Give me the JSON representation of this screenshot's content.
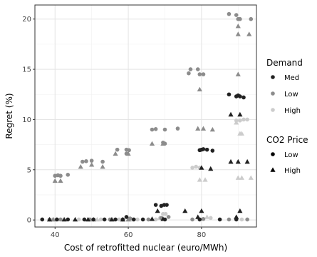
{
  "chart_data": {
    "type": "scatter",
    "xlabel": "Cost of retrofitted nuclear (euro/MWh)",
    "ylabel": "Regret (%)",
    "xlim": [
      34.5,
      95
    ],
    "ylim": [
      -0.7,
      21.4
    ],
    "x_ticks": [
      40,
      60,
      80
    ],
    "x_tick_labels": [
      "40",
      "60",
      "80"
    ],
    "y_ticks": [
      0,
      5,
      10,
      15,
      20
    ],
    "y_tick_labels": [
      "0",
      "5",
      "10",
      "15",
      "20"
    ],
    "grid": true,
    "panel_border": true,
    "legend_position": "right",
    "legends": [
      {
        "title": "Demand",
        "entries": [
          {
            "label": "Med",
            "color": "#222222"
          },
          {
            "label": "Low",
            "color": "#8c8c8c"
          },
          {
            "label": "High",
            "color": "#cccccc"
          }
        ]
      },
      {
        "title": "CO2 Price",
        "entries": [
          {
            "label": "Low",
            "shape": "circle"
          },
          {
            "label": "High",
            "shape": "triangle"
          }
        ]
      }
    ],
    "colors": {
      "Med": "#222222",
      "Low": "#8c8c8c",
      "High": "#cccccc"
    },
    "points": [
      {
        "x": 36.5,
        "y": 0.05,
        "demand": "Med",
        "co2": "Low"
      },
      {
        "x": 38.5,
        "y": 0.05,
        "demand": "Low",
        "co2": "Low"
      },
      {
        "x": 39.5,
        "y": 0.05,
        "demand": "High",
        "co2": "Low"
      },
      {
        "x": 40.5,
        "y": 0.05,
        "demand": "Med",
        "co2": "Low"
      },
      {
        "x": 41.5,
        "y": 0.05,
        "demand": "Low",
        "co2": "Low"
      },
      {
        "x": 43.5,
        "y": 0.05,
        "demand": "Med",
        "co2": "Low"
      },
      {
        "x": 46.5,
        "y": 0.05,
        "demand": "High",
        "co2": "Low"
      },
      {
        "x": 48.0,
        "y": 0.05,
        "demand": "Med",
        "co2": "Low"
      },
      {
        "x": 49.5,
        "y": 0.05,
        "demand": "Low",
        "co2": "Low"
      },
      {
        "x": 50.5,
        "y": 0.05,
        "demand": "Med",
        "co2": "Low"
      },
      {
        "x": 52.5,
        "y": 0.05,
        "demand": "High",
        "co2": "Low"
      },
      {
        "x": 53.5,
        "y": 0.05,
        "demand": "Med",
        "co2": "Low"
      },
      {
        "x": 55.0,
        "y": 0.05,
        "demand": "Low",
        "co2": "Low"
      },
      {
        "x": 56.5,
        "y": 0.05,
        "demand": "Med",
        "co2": "Low"
      },
      {
        "x": 57.5,
        "y": 0.05,
        "demand": "High",
        "co2": "Low"
      },
      {
        "x": 58.5,
        "y": 0.05,
        "demand": "Med",
        "co2": "Low"
      },
      {
        "x": 59.5,
        "y": 0.3,
        "demand": "Med",
        "co2": "Low"
      },
      {
        "x": 60.5,
        "y": 0.15,
        "demand": "Low",
        "co2": "Low"
      },
      {
        "x": 61.5,
        "y": 0.05,
        "demand": "Med",
        "co2": "Low"
      },
      {
        "x": 62.5,
        "y": 0.05,
        "demand": "High",
        "co2": "Low"
      },
      {
        "x": 64.0,
        "y": 0.05,
        "demand": "Med",
        "co2": "Low"
      },
      {
        "x": 65.5,
        "y": 0.05,
        "demand": "Low",
        "co2": "Low"
      },
      {
        "x": 67.5,
        "y": 0.05,
        "demand": "High",
        "co2": "Low"
      },
      {
        "x": 67.5,
        "y": 1.5,
        "demand": "Med",
        "co2": "Low"
      },
      {
        "x": 69.0,
        "y": 1.4,
        "demand": "Med",
        "co2": "Low"
      },
      {
        "x": 69.8,
        "y": 1.5,
        "demand": "Med",
        "co2": "Low"
      },
      {
        "x": 70.5,
        "y": 1.5,
        "demand": "Med",
        "co2": "Low"
      },
      {
        "x": 69.5,
        "y": 0.6,
        "demand": "High",
        "co2": "Low"
      },
      {
        "x": 70.2,
        "y": 0.6,
        "demand": "High",
        "co2": "Low"
      },
      {
        "x": 69.0,
        "y": 0.2,
        "demand": "Low",
        "co2": "Low"
      },
      {
        "x": 71.0,
        "y": 0.3,
        "demand": "Low",
        "co2": "Low"
      },
      {
        "x": 70.0,
        "y": 0.05,
        "demand": "Med",
        "co2": "Low"
      },
      {
        "x": 77.5,
        "y": 0.05,
        "demand": "Low",
        "co2": "Low"
      },
      {
        "x": 79.5,
        "y": 0.05,
        "demand": "Med",
        "co2": "Low"
      },
      {
        "x": 80.5,
        "y": 0.1,
        "demand": "Low",
        "co2": "Low"
      },
      {
        "x": 82.5,
        "y": 0.2,
        "demand": "High",
        "co2": "Low"
      },
      {
        "x": 85.0,
        "y": 0.05,
        "demand": "Med",
        "co2": "Low"
      },
      {
        "x": 87.5,
        "y": 0.05,
        "demand": "Low",
        "co2": "Low"
      },
      {
        "x": 89.5,
        "y": 0.05,
        "demand": "Med",
        "co2": "Low"
      },
      {
        "x": 91.0,
        "y": 0.05,
        "demand": "High",
        "co2": "Low"
      },
      {
        "x": 92.5,
        "y": 0.05,
        "demand": "Low",
        "co2": "Low"
      },
      {
        "x": 38.5,
        "y": 0.05,
        "demand": "Med",
        "co2": "High"
      },
      {
        "x": 39.5,
        "y": 0.05,
        "demand": "Low",
        "co2": "High"
      },
      {
        "x": 40.5,
        "y": 0.05,
        "demand": "High",
        "co2": "High"
      },
      {
        "x": 42.5,
        "y": 0.05,
        "demand": "Med",
        "co2": "High"
      },
      {
        "x": 45.5,
        "y": 0.05,
        "demand": "Med",
        "co2": "High"
      },
      {
        "x": 49.0,
        "y": 0.05,
        "demand": "Med",
        "co2": "High"
      },
      {
        "x": 50.5,
        "y": 0.05,
        "demand": "Low",
        "co2": "High"
      },
      {
        "x": 51.5,
        "y": 0.05,
        "demand": "High",
        "co2": "High"
      },
      {
        "x": 55.5,
        "y": 0.05,
        "demand": "Med",
        "co2": "High"
      },
      {
        "x": 58.5,
        "y": 0.05,
        "demand": "Med",
        "co2": "High"
      },
      {
        "x": 60.0,
        "y": 0.05,
        "demand": "Low",
        "co2": "High"
      },
      {
        "x": 61.0,
        "y": 0.05,
        "demand": "High",
        "co2": "High"
      },
      {
        "x": 66.5,
        "y": 0.1,
        "demand": "Med",
        "co2": "High"
      },
      {
        "x": 68.0,
        "y": 0.9,
        "demand": "Med",
        "co2": "High"
      },
      {
        "x": 68.5,
        "y": 0.2,
        "demand": "High",
        "co2": "High"
      },
      {
        "x": 69.5,
        "y": 0.1,
        "demand": "Med",
        "co2": "High"
      },
      {
        "x": 75.5,
        "y": 0.9,
        "demand": "Med",
        "co2": "High"
      },
      {
        "x": 79.0,
        "y": 0.3,
        "demand": "Med",
        "co2": "High"
      },
      {
        "x": 80.0,
        "y": 0.9,
        "demand": "Med",
        "co2": "High"
      },
      {
        "x": 81.5,
        "y": 0.3,
        "demand": "High",
        "co2": "High"
      },
      {
        "x": 89.5,
        "y": 0.3,
        "demand": "Med",
        "co2": "High"
      },
      {
        "x": 90.5,
        "y": 0.9,
        "demand": "Med",
        "co2": "High"
      },
      {
        "x": 40.0,
        "y": 4.4,
        "demand": "Low",
        "co2": "Low"
      },
      {
        "x": 40.8,
        "y": 4.45,
        "demand": "Low",
        "co2": "Low"
      },
      {
        "x": 41.5,
        "y": 4.4,
        "demand": "Low",
        "co2": "Low"
      },
      {
        "x": 43.5,
        "y": 4.5,
        "demand": "Low",
        "co2": "Low"
      },
      {
        "x": 40.0,
        "y": 3.9,
        "demand": "Low",
        "co2": "High"
      },
      {
        "x": 41.5,
        "y": 3.9,
        "demand": "Low",
        "co2": "High"
      },
      {
        "x": 47.5,
        "y": 5.8,
        "demand": "Low",
        "co2": "Low"
      },
      {
        "x": 48.5,
        "y": 5.85,
        "demand": "Low",
        "co2": "Low"
      },
      {
        "x": 50.0,
        "y": 5.9,
        "demand": "Low",
        "co2": "Low"
      },
      {
        "x": 53.0,
        "y": 5.8,
        "demand": "Low",
        "co2": "Low"
      },
      {
        "x": 47.0,
        "y": 5.3,
        "demand": "Low",
        "co2": "High"
      },
      {
        "x": 50.0,
        "y": 5.5,
        "demand": "Low",
        "co2": "High"
      },
      {
        "x": 53.0,
        "y": 5.3,
        "demand": "Low",
        "co2": "High"
      },
      {
        "x": 57.0,
        "y": 7.0,
        "demand": "Low",
        "co2": "Low"
      },
      {
        "x": 59.5,
        "y": 7.0,
        "demand": "Low",
        "co2": "Low"
      },
      {
        "x": 60.2,
        "y": 6.95,
        "demand": "Low",
        "co2": "Low"
      },
      {
        "x": 59.5,
        "y": 6.6,
        "demand": "Low",
        "co2": "Low"
      },
      {
        "x": 56.5,
        "y": 6.6,
        "demand": "Low",
        "co2": "High"
      },
      {
        "x": 60.0,
        "y": 6.6,
        "demand": "Low",
        "co2": "High"
      },
      {
        "x": 66.5,
        "y": 9.0,
        "demand": "Low",
        "co2": "Low"
      },
      {
        "x": 67.5,
        "y": 9.05,
        "demand": "Low",
        "co2": "Low"
      },
      {
        "x": 70.0,
        "y": 9.0,
        "demand": "Low",
        "co2": "Low"
      },
      {
        "x": 73.5,
        "y": 9.1,
        "demand": "Low",
        "co2": "Low"
      },
      {
        "x": 69.5,
        "y": 7.7,
        "demand": "Low",
        "co2": "Low"
      },
      {
        "x": 70.0,
        "y": 7.6,
        "demand": "Low",
        "co2": "Low"
      },
      {
        "x": 66.5,
        "y": 7.6,
        "demand": "Low",
        "co2": "High"
      },
      {
        "x": 69.5,
        "y": 7.6,
        "demand": "Low",
        "co2": "High"
      },
      {
        "x": 76.5,
        "y": 14.6,
        "demand": "Low",
        "co2": "Low"
      },
      {
        "x": 77.0,
        "y": 15.0,
        "demand": "Low",
        "co2": "Low"
      },
      {
        "x": 79.0,
        "y": 15.0,
        "demand": "Low",
        "co2": "Low"
      },
      {
        "x": 79.5,
        "y": 14.5,
        "demand": "Low",
        "co2": "Low"
      },
      {
        "x": 80.5,
        "y": 14.5,
        "demand": "Low",
        "co2": "Low"
      },
      {
        "x": 79.5,
        "y": 13.0,
        "demand": "Low",
        "co2": "High"
      },
      {
        "x": 79.0,
        "y": 9.1,
        "demand": "Low",
        "co2": "High"
      },
      {
        "x": 80.5,
        "y": 9.1,
        "demand": "Low",
        "co2": "High"
      },
      {
        "x": 83.0,
        "y": 9.0,
        "demand": "Low",
        "co2": "High"
      },
      {
        "x": 87.5,
        "y": 20.5,
        "demand": "Low",
        "co2": "Low"
      },
      {
        "x": 89.5,
        "y": 20.4,
        "demand": "Low",
        "co2": "Low"
      },
      {
        "x": 90.0,
        "y": 20.0,
        "demand": "Low",
        "co2": "Low"
      },
      {
        "x": 90.5,
        "y": 20.0,
        "demand": "Low",
        "co2": "Low"
      },
      {
        "x": 93.5,
        "y": 20.0,
        "demand": "Low",
        "co2": "Low"
      },
      {
        "x": 90.0,
        "y": 19.3,
        "demand": "Low",
        "co2": "High"
      },
      {
        "x": 90.0,
        "y": 18.5,
        "demand": "Low",
        "co2": "High"
      },
      {
        "x": 93.0,
        "y": 18.5,
        "demand": "Low",
        "co2": "High"
      },
      {
        "x": 90.0,
        "y": 14.5,
        "demand": "Low",
        "co2": "High"
      },
      {
        "x": 77.5,
        "y": 5.2,
        "demand": "High",
        "co2": "Low"
      },
      {
        "x": 78.5,
        "y": 5.3,
        "demand": "High",
        "co2": "Low"
      },
      {
        "x": 79.5,
        "y": 5.2,
        "demand": "High",
        "co2": "Low"
      },
      {
        "x": 79.5,
        "y": 6.95,
        "demand": "Med",
        "co2": "Low"
      },
      {
        "x": 80.0,
        "y": 7.0,
        "demand": "Med",
        "co2": "Low"
      },
      {
        "x": 80.5,
        "y": 7.05,
        "demand": "Med",
        "co2": "Low"
      },
      {
        "x": 81.5,
        "y": 7.0,
        "demand": "Med",
        "co2": "Low"
      },
      {
        "x": 83.0,
        "y": 6.9,
        "demand": "Med",
        "co2": "Low"
      },
      {
        "x": 80.0,
        "y": 5.2,
        "demand": "Med",
        "co2": "High"
      },
      {
        "x": 82.5,
        "y": 5.1,
        "demand": "Med",
        "co2": "High"
      },
      {
        "x": 79.5,
        "y": 4.0,
        "demand": "High",
        "co2": "High"
      },
      {
        "x": 81.0,
        "y": 4.0,
        "demand": "High",
        "co2": "High"
      },
      {
        "x": 87.5,
        "y": 12.5,
        "demand": "Med",
        "co2": "Low"
      },
      {
        "x": 89.5,
        "y": 12.3,
        "demand": "Med",
        "co2": "Low"
      },
      {
        "x": 90.0,
        "y": 12.4,
        "demand": "Med",
        "co2": "Low"
      },
      {
        "x": 90.5,
        "y": 12.3,
        "demand": "Med",
        "co2": "Low"
      },
      {
        "x": 91.5,
        "y": 12.2,
        "demand": "Med",
        "co2": "Low"
      },
      {
        "x": 88.0,
        "y": 10.5,
        "demand": "Med",
        "co2": "High"
      },
      {
        "x": 90.5,
        "y": 10.5,
        "demand": "Med",
        "co2": "High"
      },
      {
        "x": 89.5,
        "y": 9.9,
        "demand": "High",
        "co2": "Low"
      },
      {
        "x": 90.5,
        "y": 9.9,
        "demand": "High",
        "co2": "Low"
      },
      {
        "x": 91.5,
        "y": 10.0,
        "demand": "High",
        "co2": "Low"
      },
      {
        "x": 92.5,
        "y": 10.0,
        "demand": "High",
        "co2": "Low"
      },
      {
        "x": 89.5,
        "y": 9.7,
        "demand": "High",
        "co2": "High"
      },
      {
        "x": 90.5,
        "y": 8.6,
        "demand": "High",
        "co2": "High"
      },
      {
        "x": 91.0,
        "y": 8.6,
        "demand": "High",
        "co2": "High"
      },
      {
        "x": 88.0,
        "y": 5.8,
        "demand": "Med",
        "co2": "High"
      },
      {
        "x": 90.0,
        "y": 5.8,
        "demand": "Med",
        "co2": "High"
      },
      {
        "x": 92.5,
        "y": 5.8,
        "demand": "Med",
        "co2": "High"
      },
      {
        "x": 90.0,
        "y": 4.2,
        "demand": "High",
        "co2": "High"
      },
      {
        "x": 91.0,
        "y": 4.2,
        "demand": "High",
        "co2": "High"
      },
      {
        "x": 93.5,
        "y": 4.2,
        "demand": "High",
        "co2": "High"
      }
    ]
  }
}
